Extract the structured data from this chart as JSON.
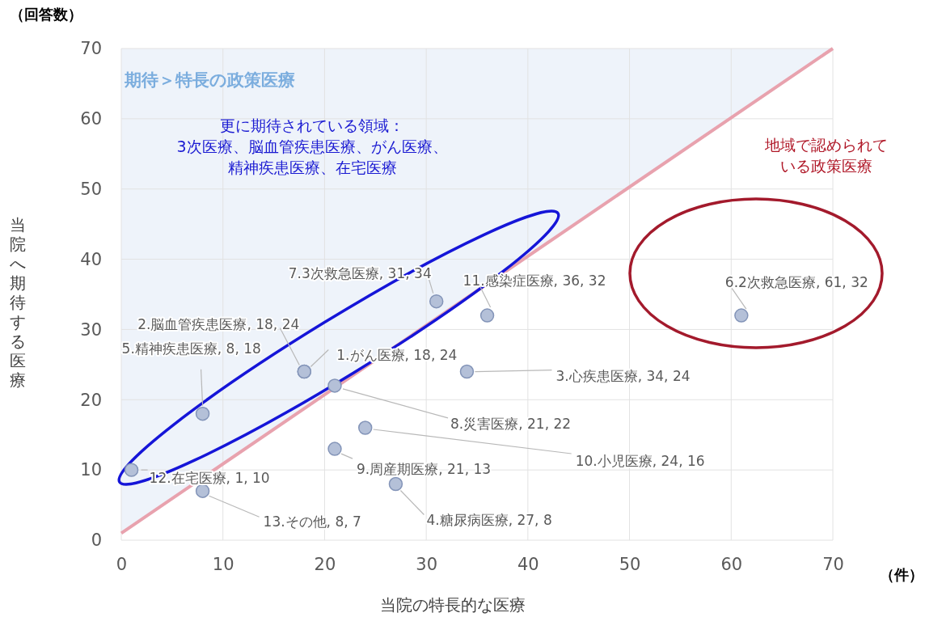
{
  "chart_data": {
    "type": "scatter",
    "xlabel": "当院の特長的な医療",
    "ylabel": "当院へ期待する医療",
    "xlim": [
      0,
      70
    ],
    "ylim": [
      0,
      70
    ],
    "xticks": [
      0,
      10,
      20,
      30,
      40,
      50,
      60,
      70
    ],
    "yticks": [
      0,
      10,
      20,
      30,
      40,
      50,
      60,
      70
    ],
    "grid": true,
    "marker": "circle",
    "series": [
      {
        "type": "line",
        "marker": "none",
        "color": "#e8a2ae",
        "x": [
          0,
          70
        ],
        "values": [
          1,
          70
        ],
        "lower": [
          1,
          70
        ],
        "upper": [
          70,
          70
        ]
      },
      {
        "color": "#b4c0d8",
        "x": [
          18,
          18,
          34,
          27,
          8,
          61,
          31,
          21,
          21,
          24,
          36,
          1,
          8
        ],
        "values": [
          24,
          24,
          24,
          8,
          18,
          32,
          34,
          22,
          13,
          16,
          32,
          10,
          7
        ],
        "value_labels": [
          "1.がん医療, 18, 24",
          "2.脳血管疾患医療, 18, 24",
          "3.心疾患医療, 34, 24",
          "4.糖尿病医療, 27, 8",
          "5.精神疾患医療, 8, 18",
          "6.2次救急医療, 61, 32",
          "7.3次救急医療, 31, 34",
          "8.災害医療, 21, 22",
          "9.周産期医療, 21, 13",
          "10.小児医療, 24, 16",
          "11.感染症医療, 36, 32",
          "12.在宅医療, 1, 10",
          "13.その他, 8, 7"
        ]
      }
    ],
    "annotations": [
      "（回答数）",
      "（件）",
      "期待＞特長の政策医療",
      "更に期待されている領域：3次医療、脳血管疾患医療、がん医療、精神疾患医療、在宅医療",
      "地域で認められている政策医療"
    ]
  }
}
